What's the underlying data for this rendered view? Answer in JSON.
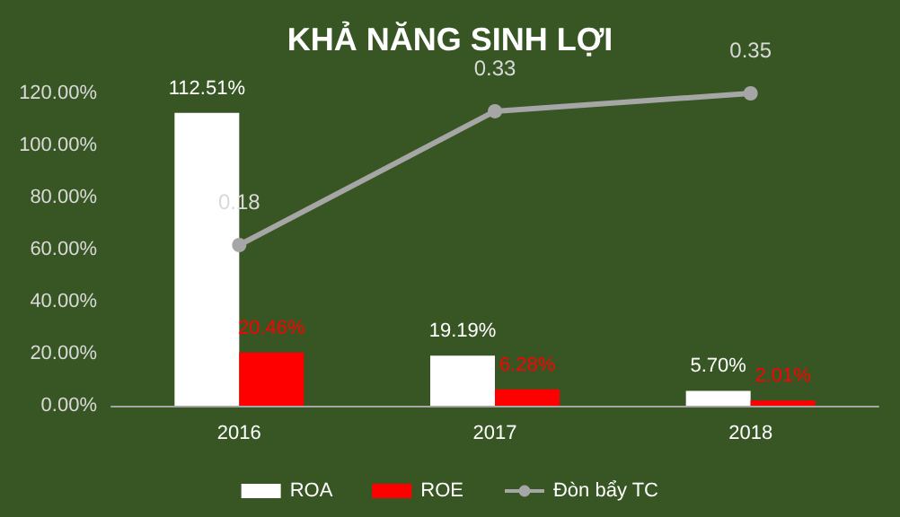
{
  "chart_data": {
    "type": "bar",
    "title": "KHẢ NĂNG SINH LỢI",
    "categories": [
      "2016",
      "2017",
      "2018"
    ],
    "series": [
      {
        "name": "ROA",
        "color": "#ffffff",
        "values": [
          112.51,
          19.19,
          5.7
        ],
        "value_labels": [
          "112.51%",
          "19.19%",
          "5.70%"
        ]
      },
      {
        "name": "ROE",
        "color": "#ff0000",
        "values": [
          20.46,
          6.28,
          2.01
        ],
        "value_labels": [
          "20.46%",
          "6.28%",
          "2.01%"
        ]
      },
      {
        "name": "Đòn bẩy TC",
        "type": "line",
        "axis": "y2",
        "color": "#a6a6a6",
        "values": [
          0.18,
          0.33,
          0.35
        ],
        "value_labels": [
          "0.18",
          "0.33",
          "0.35"
        ]
      }
    ],
    "ylim": [
      0,
      120
    ],
    "yticks": [
      {
        "value": 0,
        "label": "0.00%"
      },
      {
        "value": 20,
        "label": "20.00%"
      },
      {
        "value": 40,
        "label": "40.00%"
      },
      {
        "value": 60,
        "label": "60.00%"
      },
      {
        "value": 80,
        "label": "80.00%"
      },
      {
        "value": 100,
        "label": "100.00%"
      },
      {
        "value": 120,
        "label": "120.00%"
      }
    ],
    "grid": false,
    "legend": "bottom",
    "marker": "circle"
  }
}
